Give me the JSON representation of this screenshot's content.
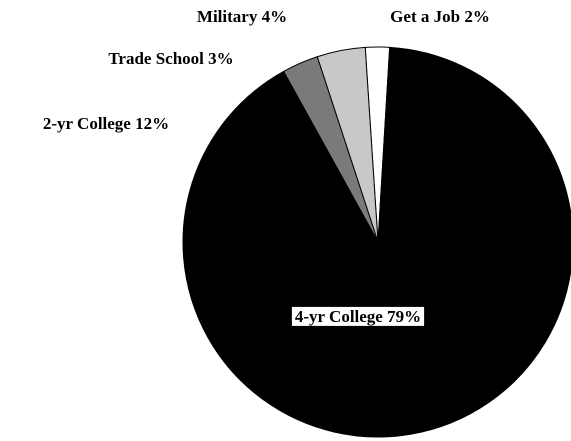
{
  "chart_data": {
    "type": "pie",
    "categories": [
      "Get a Job",
      "Military",
      "Trade School",
      "2-yr College",
      "4-yr College"
    ],
    "values": [
      2,
      4,
      3,
      12,
      79
    ],
    "value_labels": [
      "2%",
      "4%",
      "3%",
      "12%",
      "79%"
    ],
    "colors": [
      "#ffffff",
      "#c8c8c8",
      "#7a7a7a",
      "#000000",
      "#000000"
    ]
  }
}
